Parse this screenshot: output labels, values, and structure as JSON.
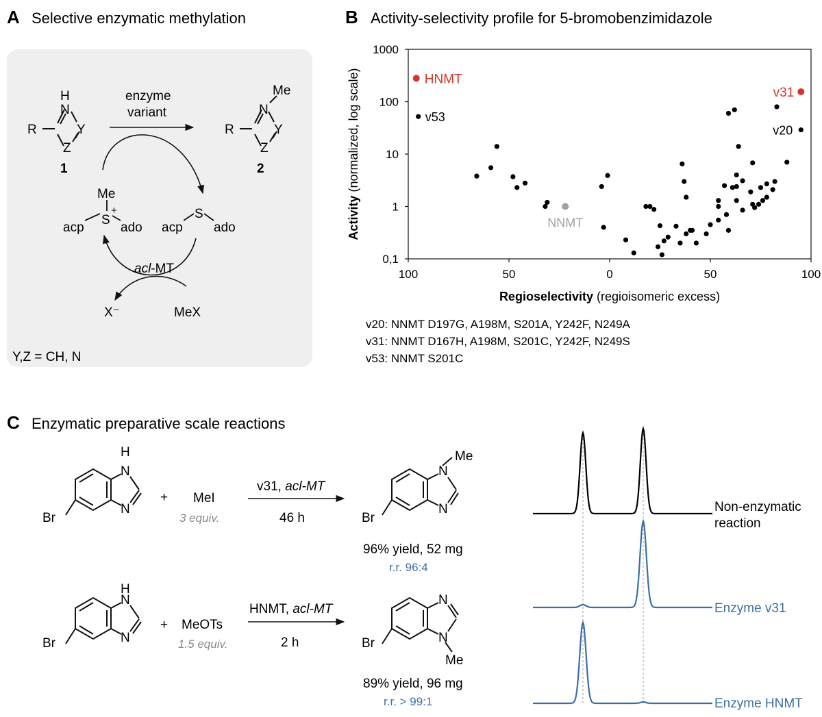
{
  "panel_a": {
    "letter": "A",
    "heading": "Selective enzymatic methylation",
    "enzyme_line1": "enzyme",
    "enzyme_line2": "variant",
    "compound1": "1",
    "compound2": "2",
    "me": "Me",
    "atom_h": "H",
    "atom_n": "N",
    "atom_y": "Y",
    "atom_z": "Z",
    "atom_r": "R",
    "atom_s": "S",
    "plus": "+",
    "acp": "acp",
    "ado": "ado",
    "enzyme_italic": "acl",
    "enzyme_rest": "-MT",
    "halide": "X⁻",
    "mex": "MeX",
    "footnote": "Y,Z = CH, N"
  },
  "panel_b": {
    "letter": "B",
    "heading": "Activity-selectivity profile for 5-bromobenzimidazole",
    "legend_v20": "v20: NNMT D197G, A198M, S201A, Y242F, N249A",
    "legend_v31": "v31: NNMT D167H, A198M, S201C, Y242F, N249S",
    "legend_v53": "v53: NNMT S201C"
  },
  "chart_data": {
    "type": "scatter",
    "title": "Activity-selectivity profile for 5-bromobenzimidazole",
    "xlabel_bold": "Regioselectivity",
    "xlabel_rest": "(regioisomeric excess)",
    "ylabel_bold": "Activity",
    "ylabel_rest": "(normalized, log scale)",
    "x_axis": {
      "range": [
        -100,
        100
      ],
      "ticks": [
        -100,
        -50,
        0,
        50,
        100
      ],
      "tick_labels": [
        "100",
        "50",
        "0",
        "50",
        "100"
      ]
    },
    "y_axis": {
      "scale": "log",
      "range": [
        0.1,
        1000
      ],
      "ticks": [
        0.1,
        1,
        10,
        100,
        1000
      ],
      "tick_labels": [
        "0,1",
        "1",
        "10",
        "100",
        "1000"
      ]
    },
    "grid": false,
    "colors": {
      "default": "#000000",
      "highlight": "#d1382a",
      "reference": "#a0a0a0"
    },
    "highlighted": [
      {
        "label": "HNMT",
        "x": -96,
        "y": 280,
        "color": "#d1382a"
      },
      {
        "label": "v31",
        "x": 95,
        "y": 155,
        "color": "#d1382a"
      },
      {
        "label": "v53",
        "x": -95,
        "y": 52,
        "color": "#000000"
      },
      {
        "label": "v20",
        "x": 95,
        "y": 29,
        "color": "#000000"
      },
      {
        "label": "NNMT",
        "x": -22,
        "y": 1.0,
        "color": "#a0a0a0"
      }
    ],
    "points": [
      [
        -66,
        3.8
      ],
      [
        -59,
        5.5
      ],
      [
        -56,
        14
      ],
      [
        -48,
        3.7
      ],
      [
        -46,
        2.3
      ],
      [
        -42,
        2.8
      ],
      [
        -32,
        1.0
      ],
      [
        -31,
        1.2
      ],
      [
        -4,
        2.4
      ],
      [
        -3,
        0.4
      ],
      [
        -1,
        3.9
      ],
      [
        8,
        0.23
      ],
      [
        12,
        0.13
      ],
      [
        18,
        1.0
      ],
      [
        20,
        1.0
      ],
      [
        22,
        0.88
      ],
      [
        24,
        0.17
      ],
      [
        25,
        0.43
      ],
      [
        26,
        0.12
      ],
      [
        27,
        0.22
      ],
      [
        29,
        0.26
      ],
      [
        33,
        0.42
      ],
      [
        35,
        0.2
      ],
      [
        36,
        6.5
      ],
      [
        37,
        3.0
      ],
      [
        38,
        1.5
      ],
      [
        38,
        0.3
      ],
      [
        40,
        0.35
      ],
      [
        41,
        0.35
      ],
      [
        43,
        0.2
      ],
      [
        48,
        0.3
      ],
      [
        50,
        0.45
      ],
      [
        54,
        1.0
      ],
      [
        54,
        1.3
      ],
      [
        54,
        0.55
      ],
      [
        57,
        2.5
      ],
      [
        58,
        0.7
      ],
      [
        59,
        60
      ],
      [
        59,
        0.35
      ],
      [
        61,
        2.3
      ],
      [
        62,
        70
      ],
      [
        63,
        2.4
      ],
      [
        63,
        4.0
      ],
      [
        63,
        1.3
      ],
      [
        64,
        14
      ],
      [
        66,
        3.1
      ],
      [
        66,
        0.85
      ],
      [
        70,
        1.9
      ],
      [
        71,
        6.8
      ],
      [
        71,
        1.1
      ],
      [
        72,
        0.95
      ],
      [
        74,
        1.1
      ],
      [
        75,
        2.3
      ],
      [
        76,
        1.3
      ],
      [
        78,
        2.7
      ],
      [
        78,
        1.5
      ],
      [
        81,
        2.1
      ],
      [
        82,
        3.0
      ],
      [
        83,
        80
      ],
      [
        88,
        7.0
      ]
    ]
  },
  "panel_c": {
    "letter": "C",
    "heading": "Enzymatic preparative scale reactions",
    "atom_br": "Br",
    "atom_n": "N",
    "atom_h": "H",
    "me": "Me",
    "plus": "+",
    "r1": {
      "reagent": "MeI",
      "equiv": "3 equiv.",
      "cond_enzyme": "v31, ",
      "cond_italic": "acl-MT",
      "time": "46 h",
      "yield": "96% yield, 52 mg",
      "rr": "r.r. 96:4"
    },
    "r2": {
      "reagent": "MeOTs",
      "equiv": "1.5 equiv.",
      "cond_enzyme": "HNMT, ",
      "cond_italic": "acl-MT",
      "time": "2 h",
      "yield": "89% yield, 96 mg",
      "rr": "r.r. > 99:1"
    },
    "traces": {
      "nonenz_line1": "Non-enzymatic",
      "nonenz_line2": "reaction",
      "v31": "Enzyme v31",
      "hnmt": "Enzyme HNMT",
      "black": "#000000",
      "blue": "#3b6ea5"
    }
  }
}
